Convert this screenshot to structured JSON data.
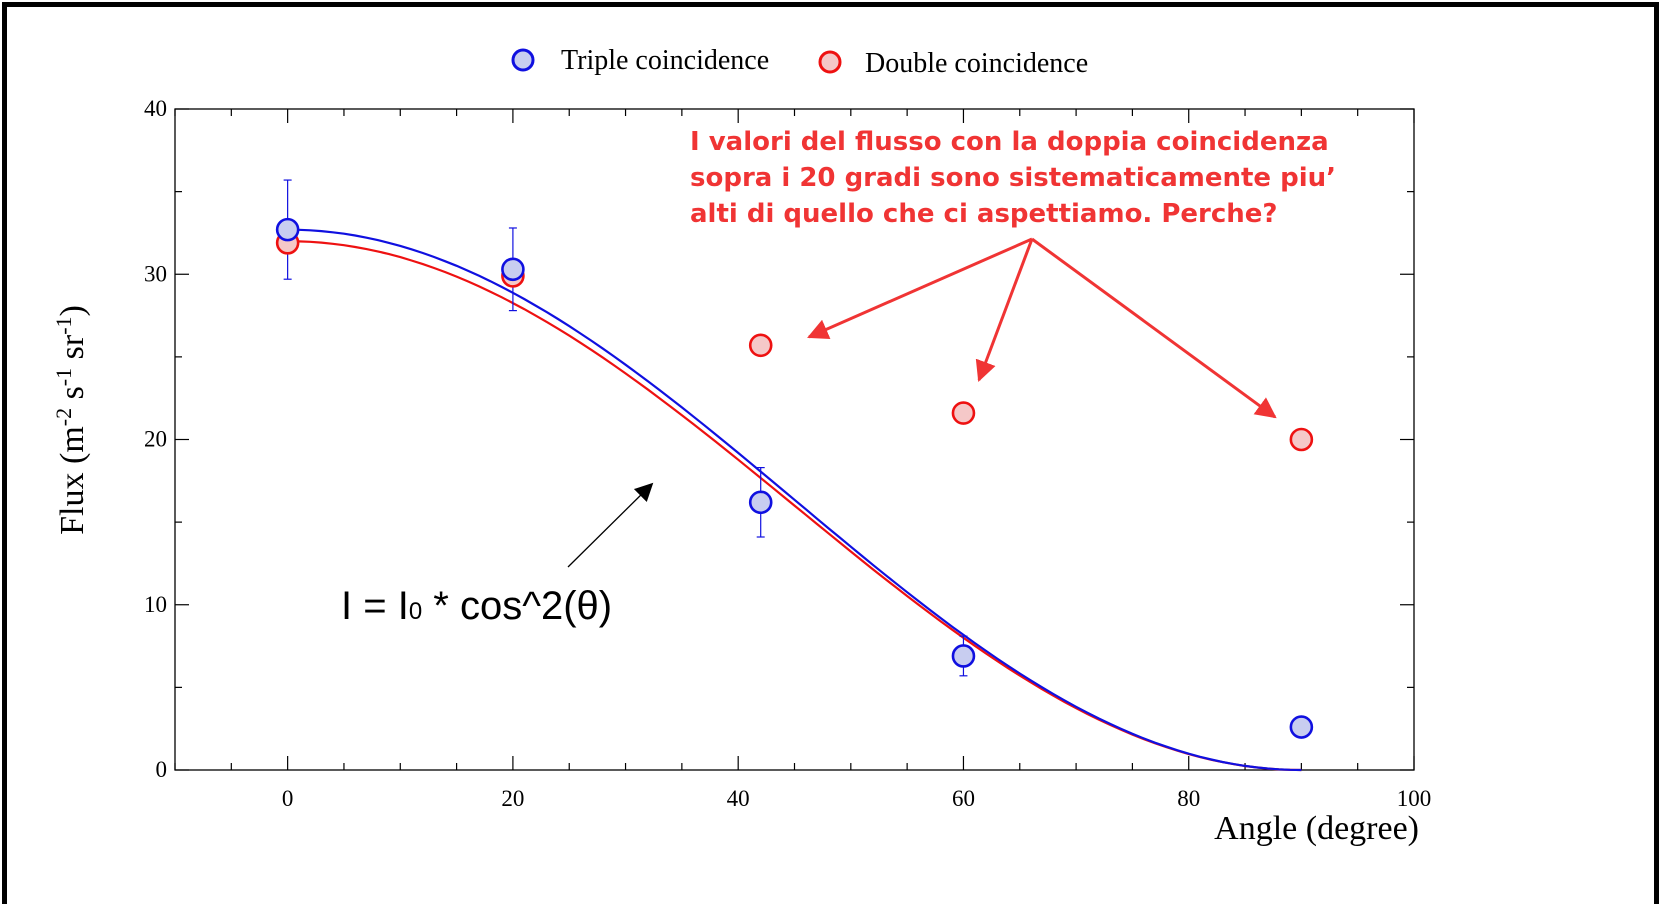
{
  "chart_data": {
    "type": "scatter",
    "xlabel": "Angle (degree)",
    "ylabel": "Flux (m-2 s-1 sr-1)",
    "ylabel_parts": {
      "base": "Flux (m",
      "sup1": "-2",
      "mid1": " s",
      "sup2": "-1",
      "mid2": " sr",
      "sup3": "-1",
      "end": ")"
    },
    "xlim": [
      -10,
      100
    ],
    "ylim": [
      0,
      40
    ],
    "x_ticks": [
      0,
      20,
      40,
      60,
      80,
      100
    ],
    "y_ticks": [
      0,
      10,
      20,
      30,
      40
    ],
    "grid": false,
    "legend_position": "top",
    "series": [
      {
        "name": "Triple coincidence",
        "color": "#1010e0",
        "fill": "#c8cdf0",
        "x": [
          0,
          20,
          42,
          60,
          90
        ],
        "y": [
          32.7,
          30.3,
          16.2,
          6.9,
          2.6
        ],
        "err": [
          3.0,
          2.5,
          2.1,
          1.2,
          0
        ],
        "fit": {
          "function": "I0 * cos^2(theta)",
          "I0": 32.7
        }
      },
      {
        "name": "Double coincidence",
        "color": "#ee1111",
        "fill": "#f5c8c8",
        "x": [
          0,
          20,
          42,
          60,
          90
        ],
        "y": [
          31.9,
          29.9,
          25.7,
          21.6,
          20.0
        ],
        "err": [
          0,
          0,
          0,
          0,
          0
        ],
        "fit": {
          "function": "I0 * cos^2(theta)",
          "I0": 32.0
        }
      }
    ],
    "annotations": [
      {
        "lines": [
          "I valori del flusso con la doppia coincidenza",
          "sopra i 20 gradi sono sistematicamente piu’",
          "alti di quello che ci aspettiamo. Perche?"
        ],
        "color": "#f03434"
      },
      {
        "formula": {
          "a": "I = I",
          "sub": "0",
          "b": " * cos^2(θ)"
        },
        "color": "#000000"
      }
    ]
  }
}
